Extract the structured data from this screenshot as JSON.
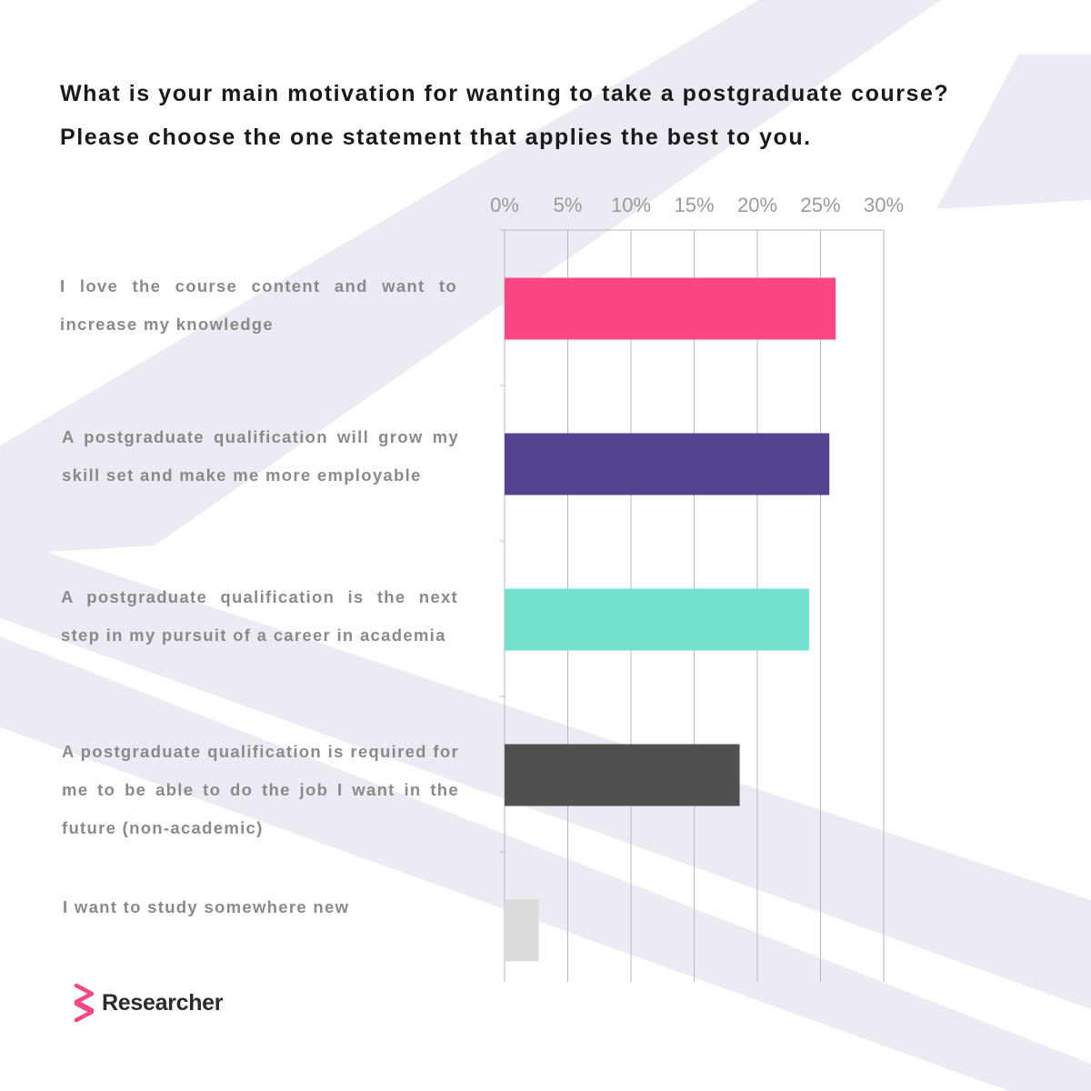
{
  "title": {
    "line1": "What is your main motivation for wanting to take a postgraduate course?",
    "line2": "Please choose the one statement that applies the best to you."
  },
  "brand": {
    "name": "Researcher",
    "color": "#fa4784"
  },
  "chart_data": {
    "type": "bar",
    "orientation": "horizontal",
    "categories": [
      "I love the course content and want to increase my knowledge",
      "A postgraduate qualification will grow my skill set and make me more employable",
      "A postgraduate qualification is the next step in my pursuit of a career in academia",
      "A postgraduate qualification is required for me to be able to do the job I want in the future (non-academic)",
      "I want to study somewhere new"
    ],
    "values": [
      26.2,
      25.7,
      24.1,
      18.6,
      2.7
    ],
    "colors": [
      "#fa4784",
      "#554290",
      "#74e1ce",
      "#505050",
      "#dcdcdc"
    ],
    "xlim": [
      0,
      30
    ],
    "xticks": [
      "0%",
      "5%",
      "10%",
      "15%",
      "20%",
      "25%",
      "30%"
    ],
    "tick_values": [
      0,
      5,
      10,
      15,
      20,
      25,
      30
    ],
    "grid": true,
    "axis_position": "top",
    "unit": "%",
    "legend": "none"
  }
}
